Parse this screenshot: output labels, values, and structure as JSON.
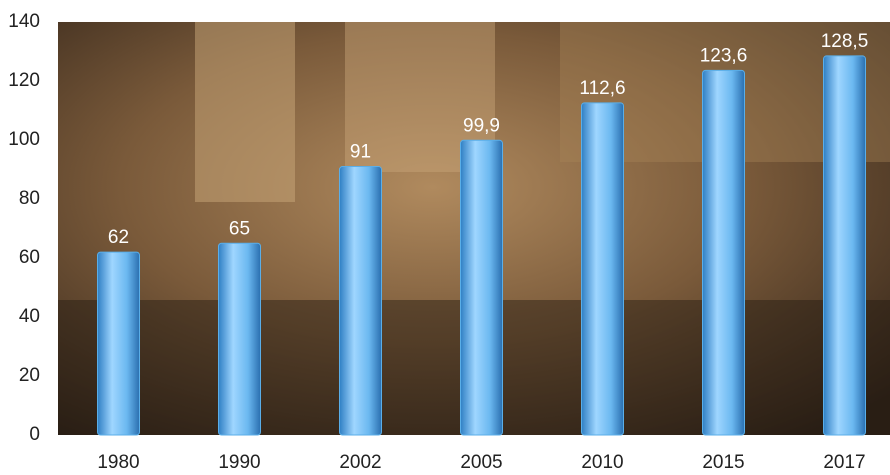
{
  "chart_data": {
    "type": "bar",
    "categories": [
      "1980",
      "1990",
      "2002",
      "2005",
      "2010",
      "2015",
      "2017"
    ],
    "values": [
      62,
      65,
      91,
      99.9,
      112.6,
      123.6,
      128.5
    ],
    "value_labels": [
      "62",
      "65",
      "91",
      "99,9",
      "112,6",
      "123,6",
      "128,5"
    ],
    "color": "#5aaee8",
    "ylim": [
      0,
      140
    ],
    "yticks": [
      0,
      20,
      40,
      60,
      80,
      100,
      120,
      140
    ]
  }
}
